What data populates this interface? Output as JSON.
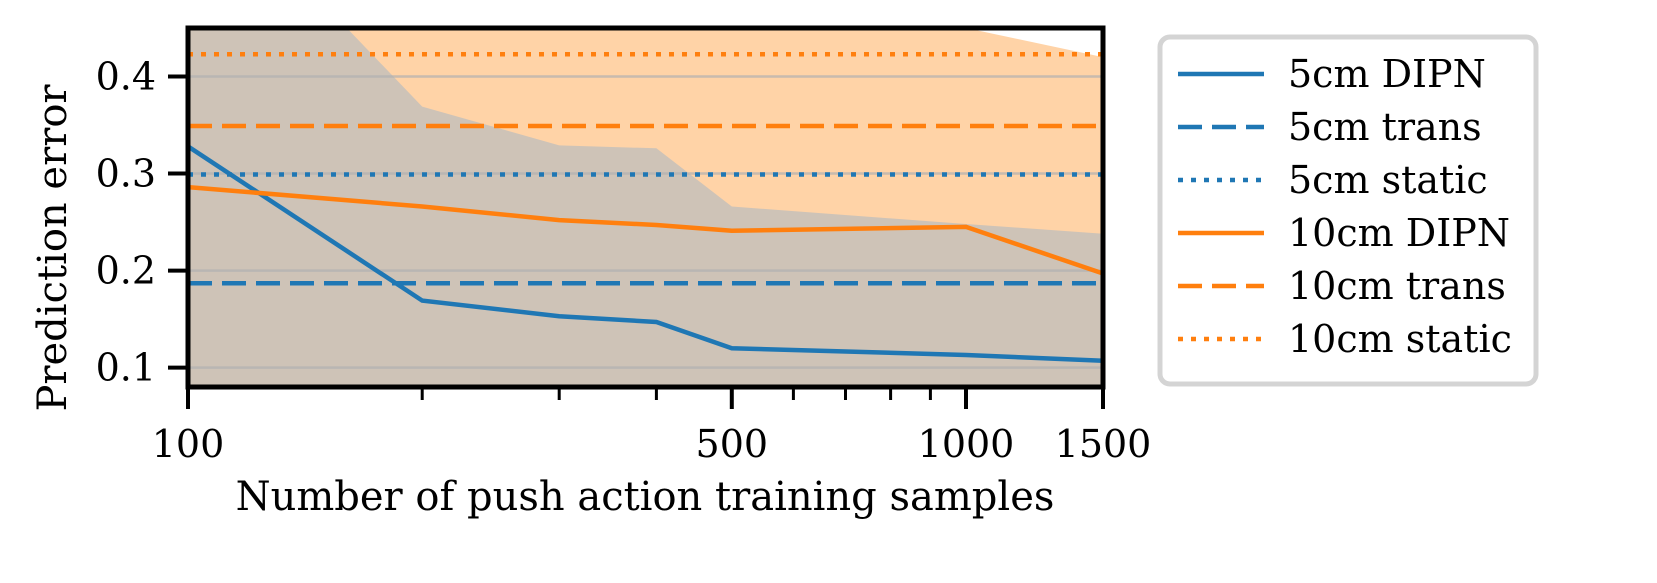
{
  "chart_data": {
    "type": "line",
    "xscale": "log",
    "title": "",
    "xlabel": "Number of push action training samples",
    "ylabel": "Prediction error",
    "xlim": [
      100,
      1500
    ],
    "ylim": [
      0.08,
      0.45
    ],
    "xticks": [
      100,
      500,
      1000,
      1500
    ],
    "xtick_labels": [
      "100",
      "500",
      "1000",
      "1500"
    ],
    "xminor_ticks": [
      200,
      300,
      400,
      600,
      700,
      800,
      900
    ],
    "yticks": [
      0.1,
      0.2,
      0.3,
      0.4
    ],
    "ytick_labels": [
      "0.1",
      "0.2",
      "0.3",
      "0.4"
    ],
    "grid": "horizontal",
    "legend_position": "outside-right",
    "series": [
      {
        "name": "5cm DIPN",
        "color": "#1f77b4",
        "style": "solid",
        "x": [
          100,
          200,
          300,
          400,
          500,
          1000,
          1500
        ],
        "values": [
          0.328,
          0.169,
          0.153,
          0.147,
          0.12,
          0.113,
          0.107
        ]
      },
      {
        "name": "5cm trans",
        "color": "#1f77b4",
        "style": "dashed",
        "x": [
          100,
          1500
        ],
        "values": [
          0.187,
          0.187
        ]
      },
      {
        "name": "5cm static",
        "color": "#1f77b4",
        "style": "dotted",
        "x": [
          100,
          1500
        ],
        "values": [
          0.299,
          0.299
        ]
      },
      {
        "name": "10cm DIPN",
        "color": "#ff7f0e",
        "style": "solid",
        "x": [
          100,
          200,
          300,
          400,
          500,
          1000,
          1500
        ],
        "values": [
          0.286,
          0.266,
          0.252,
          0.247,
          0.241,
          0.245,
          0.197
        ]
      },
      {
        "name": "10cm trans",
        "color": "#ff7f0e",
        "style": "dashed",
        "x": [
          100,
          1500
        ],
        "values": [
          0.349,
          0.349
        ]
      },
      {
        "name": "10cm static",
        "color": "#ff7f0e",
        "style": "dotted",
        "x": [
          100,
          1500
        ],
        "values": [
          0.423,
          0.423
        ]
      }
    ],
    "bands": [
      {
        "name": "10cm DIPN band",
        "color": "#ffbb78",
        "opacity": 0.65,
        "x": [
          100,
          200,
          300,
          400,
          500,
          1000,
          1500
        ],
        "lower": [
          0.08,
          0.08,
          0.08,
          0.08,
          0.08,
          0.08,
          0.08
        ],
        "upper": [
          0.45,
          0.45,
          0.45,
          0.45,
          0.45,
          0.45,
          0.42
        ]
      },
      {
        "name": "5cm DIPN band",
        "color": "#a6b6c4",
        "opacity": 0.55,
        "x": [
          100,
          160,
          200,
          300,
          400,
          500,
          1000,
          1500
        ],
        "lower": [
          0.08,
          0.08,
          0.08,
          0.08,
          0.08,
          0.08,
          0.08,
          0.08
        ],
        "upper": [
          0.45,
          0.45,
          0.369,
          0.329,
          0.326,
          0.266,
          0.248,
          0.238
        ]
      }
    ]
  }
}
